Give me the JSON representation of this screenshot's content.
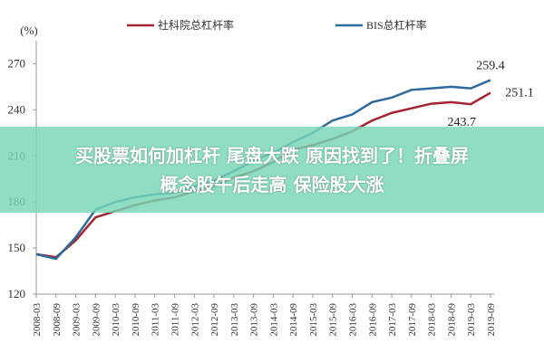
{
  "chart_data": {
    "type": "line",
    "y_label": "(%)",
    "categories": [
      "2008-03",
      "2008-09",
      "2009-03",
      "2009-09",
      "2010-03",
      "2010-09",
      "2011-03",
      "2011-09",
      "2012-03",
      "2012-09",
      "2013-03",
      "2013-09",
      "2014-03",
      "2014-09",
      "2015-03",
      "2015-09",
      "2016-03",
      "2016-09",
      "2017-03",
      "2017-09",
      "2018-03",
      "2018-09",
      "2019-03",
      "2019-09"
    ],
    "series": [
      {
        "name": "社科院总杠杆率",
        "color": "#a3232f",
        "values": [
          146,
          144,
          155,
          170,
          174,
          178,
          181,
          183,
          187,
          190,
          196,
          200,
          206,
          214,
          217,
          221,
          226,
          233,
          238,
          241,
          244,
          245,
          243.7,
          251.1
        ]
      },
      {
        "name": "BIS总杠杆率",
        "color": "#2f6a9c",
        "values": [
          146,
          143,
          157,
          175,
          180,
          183,
          185,
          186,
          190,
          194,
          200,
          207,
          212,
          219,
          225,
          233,
          237,
          245,
          248,
          253,
          254,
          255,
          254,
          259.4
        ]
      }
    ],
    "ylim": [
      120,
      285
    ],
    "yticks": [
      120,
      150,
      180,
      210,
      240,
      270
    ],
    "grid": false
  },
  "banner": {
    "lines": [
      "买股票如何加杠杆 尾盘大跌 原因找到了！折叠屏",
      "概念股午后走高 保险股大涨"
    ]
  }
}
